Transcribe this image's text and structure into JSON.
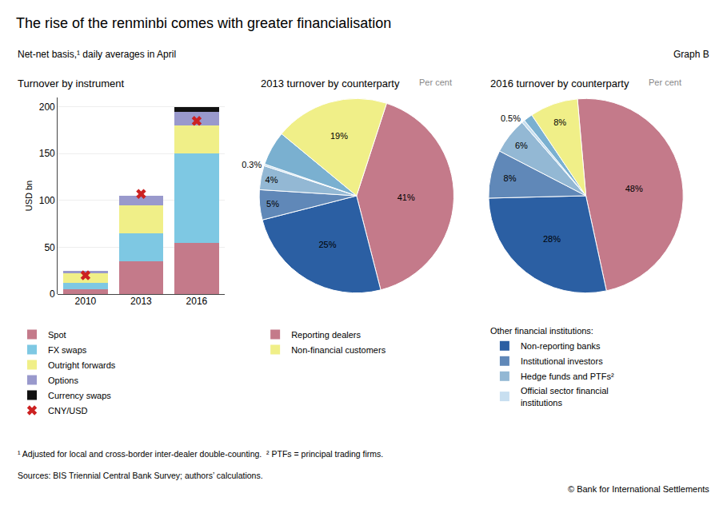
{
  "title": "The rise of the renminbi comes with greater financialisation",
  "subtitle": "Net-net basis,¹ daily averages in April",
  "annotations": [
    "Graph B",
    "¹ Adjusted for local and cross-border inter-dealer double-counting.  ² PTFs = principal trading firms.",
    "Sources: BIS Triennial Central Bank Survey; authors’ calculations.",
    "© Bank for International Settlements"
  ],
  "chart_data": [
    {
      "type": "bar",
      "title": "Turnover by instrument",
      "ylabel": "USD bn",
      "categories": [
        "2010",
        "2013",
        "2016"
      ],
      "stacked": true,
      "grid": true,
      "ylim": [
        0,
        210
      ],
      "yticks": [
        0,
        50,
        100,
        150,
        200
      ],
      "series": [
        {
          "name": "Spot",
          "type": "bar",
          "color": "#c47a8a",
          "values": [
            5,
            35,
            55
          ]
        },
        {
          "name": "FX swaps",
          "type": "bar",
          "color": "#7ec8e3",
          "values": [
            7,
            30,
            95
          ]
        },
        {
          "name": "Outright forwards",
          "type": "bar",
          "color": "#f0ef88",
          "values": [
            10,
            30,
            30
          ]
        },
        {
          "name": "Options",
          "type": "bar",
          "color": "#9999cc",
          "values": [
            3,
            10,
            15
          ]
        },
        {
          "name": "Currency swaps",
          "type": "bar",
          "color": "#111111",
          "values": [
            0,
            0,
            5
          ]
        },
        {
          "name": "CNY/USD",
          "type": "scatter",
          "marker": "x",
          "color": "#cc2222",
          "values": [
            20,
            107,
            185
          ]
        }
      ]
    },
    {
      "type": "pie",
      "title": "2013 turnover by counterparty",
      "subtitle": "Per cent",
      "categories": [
        "Reporting dealers",
        null,
        null,
        null,
        null,
        null,
        "Non-financial customers"
      ],
      "values": [
        41,
        25,
        5,
        4,
        0.3,
        5.7,
        19
      ],
      "value_labels": [
        "41%",
        "25%",
        "5%",
        "4%",
        "0.3%",
        null,
        "19%"
      ],
      "colors": [
        "#c47a8a",
        "#2b5fa3",
        "#6088b8",
        "#93b8d4",
        "#c8dff0",
        "#7ab0d0",
        "#f0ef88"
      ]
    },
    {
      "type": "pie",
      "title": "2016 turnover by counterparty",
      "subtitle": "Per cent",
      "annotations": [
        "Other financial institutions:"
      ],
      "categories": [
        null,
        "Non-reporting banks",
        "Institutional investors",
        "Hedge funds and PTFs²",
        "Official sector financial\ninstitutions",
        null,
        null
      ],
      "values": [
        48,
        28,
        8,
        6,
        0.5,
        1.5,
        8
      ],
      "value_labels": [
        "48%",
        "28%",
        "8%",
        "6%",
        "0.5%",
        null,
        "8%"
      ],
      "colors": [
        "#c47a8a",
        "#2b5fa3",
        "#6088b8",
        "#93b8d4",
        "#c8dff0",
        "#7ab0d0",
        "#f0ef88"
      ]
    }
  ]
}
